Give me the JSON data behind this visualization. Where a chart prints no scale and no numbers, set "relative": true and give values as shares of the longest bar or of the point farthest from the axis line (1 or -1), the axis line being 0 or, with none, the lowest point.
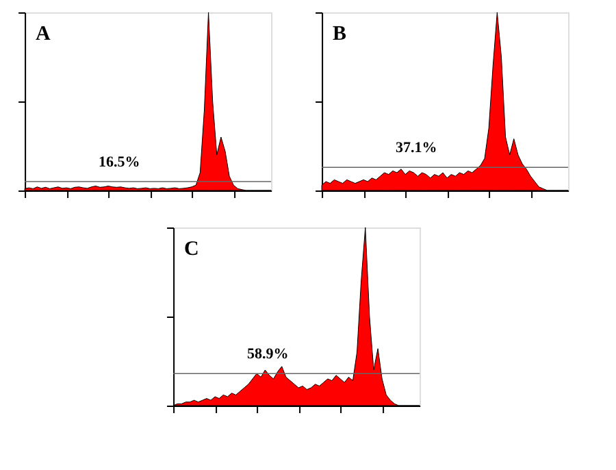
{
  "chart_data": [
    {
      "type": "area",
      "title": "A",
      "relative": true,
      "tick_labels": false,
      "grid": false,
      "categories": [
        null,
        null,
        null,
        null,
        null,
        null,
        null,
        null,
        null,
        null,
        null,
        null,
        null,
        null,
        null,
        null,
        null,
        null,
        null,
        null,
        null,
        null,
        null,
        null,
        null,
        null,
        null,
        null,
        null,
        null,
        null,
        null,
        null,
        null,
        null,
        null,
        null,
        null,
        null,
        null,
        null,
        null,
        null,
        null,
        null,
        null,
        null,
        null,
        null,
        null,
        null,
        null,
        null,
        null,
        null,
        null,
        null,
        null,
        null,
        null
      ],
      "series": [
        {
          "color": "#ff0000",
          "values": [
            0.01,
            0.015,
            0.01,
            0.02,
            0.012,
            0.018,
            0.01,
            0.015,
            0.02,
            0.012,
            0.015,
            0.01,
            0.018,
            0.02,
            0.015,
            0.012,
            0.02,
            0.025,
            0.018,
            0.02,
            0.025,
            0.02,
            0.018,
            0.02,
            0.015,
            0.012,
            0.015,
            0.01,
            0.012,
            0.015,
            0.01,
            0.012,
            0.01,
            0.015,
            0.01,
            0.012,
            0.015,
            0.01,
            0.012,
            0.015,
            0.02,
            0.03,
            0.1,
            0.45,
            1.0,
            0.5,
            0.2,
            0.3,
            0.22,
            0.08,
            0.03,
            0.01,
            0.005,
            0.0,
            0.0,
            0.0,
            0.0,
            0.0,
            0.0,
            0.0
          ]
        }
      ],
      "annotations": [
        "16.5%"
      ],
      "ref_lines": [
        {
          "axis": "y",
          "value": 0.05,
          "color": "#666666"
        }
      ]
    },
    {
      "type": "area",
      "title": "B",
      "relative": true,
      "tick_labels": false,
      "grid": false,
      "categories": [
        null,
        null,
        null,
        null,
        null,
        null,
        null,
        null,
        null,
        null,
        null,
        null,
        null,
        null,
        null,
        null,
        null,
        null,
        null,
        null,
        null,
        null,
        null,
        null,
        null,
        null,
        null,
        null,
        null,
        null,
        null,
        null,
        null,
        null,
        null,
        null,
        null,
        null,
        null,
        null,
        null,
        null,
        null,
        null,
        null,
        null,
        null,
        null,
        null,
        null,
        null,
        null,
        null,
        null,
        null,
        null,
        null,
        null,
        null,
        null
      ],
      "series": [
        {
          "color": "#ff0000",
          "values": [
            0.03,
            0.05,
            0.04,
            0.06,
            0.05,
            0.04,
            0.06,
            0.05,
            0.04,
            0.05,
            0.06,
            0.05,
            0.07,
            0.06,
            0.08,
            0.1,
            0.09,
            0.11,
            0.1,
            0.12,
            0.09,
            0.11,
            0.1,
            0.08,
            0.1,
            0.09,
            0.07,
            0.09,
            0.08,
            0.1,
            0.07,
            0.09,
            0.08,
            0.1,
            0.09,
            0.11,
            0.1,
            0.12,
            0.14,
            0.18,
            0.35,
            0.7,
            1.0,
            0.75,
            0.3,
            0.2,
            0.29,
            0.2,
            0.15,
            0.12,
            0.08,
            0.05,
            0.02,
            0.01,
            0.0,
            0.0,
            0.0,
            0.0,
            0.0,
            0.0
          ]
        }
      ],
      "annotations": [
        "37.1%"
      ],
      "ref_lines": [
        {
          "axis": "y",
          "value": 0.13,
          "color": "#666666"
        }
      ]
    },
    {
      "type": "area",
      "title": "C",
      "relative": true,
      "tick_labels": false,
      "grid": false,
      "categories": [
        null,
        null,
        null,
        null,
        null,
        null,
        null,
        null,
        null,
        null,
        null,
        null,
        null,
        null,
        null,
        null,
        null,
        null,
        null,
        null,
        null,
        null,
        null,
        null,
        null,
        null,
        null,
        null,
        null,
        null,
        null,
        null,
        null,
        null,
        null,
        null,
        null,
        null,
        null,
        null,
        null,
        null,
        null,
        null,
        null,
        null,
        null,
        null,
        null,
        null,
        null,
        null,
        null,
        null,
        null,
        null,
        null,
        null,
        null,
        null
      ],
      "series": [
        {
          "color": "#ff0000",
          "values": [
            0.0,
            0.01,
            0.01,
            0.02,
            0.02,
            0.03,
            0.02,
            0.03,
            0.04,
            0.03,
            0.05,
            0.04,
            0.06,
            0.05,
            0.07,
            0.06,
            0.08,
            0.1,
            0.12,
            0.15,
            0.18,
            0.16,
            0.2,
            0.17,
            0.15,
            0.19,
            0.22,
            0.16,
            0.14,
            0.12,
            0.1,
            0.11,
            0.09,
            0.1,
            0.12,
            0.11,
            0.13,
            0.15,
            0.14,
            0.17,
            0.15,
            0.13,
            0.16,
            0.14,
            0.3,
            0.7,
            1.0,
            0.5,
            0.2,
            0.32,
            0.15,
            0.06,
            0.03,
            0.01,
            0.0,
            0.0,
            0.0,
            0.0,
            0.0,
            0.0
          ]
        }
      ],
      "annotations": [
        "58.9%"
      ],
      "ref_lines": [
        {
          "axis": "y",
          "value": 0.18,
          "color": "#666666"
        }
      ]
    }
  ]
}
